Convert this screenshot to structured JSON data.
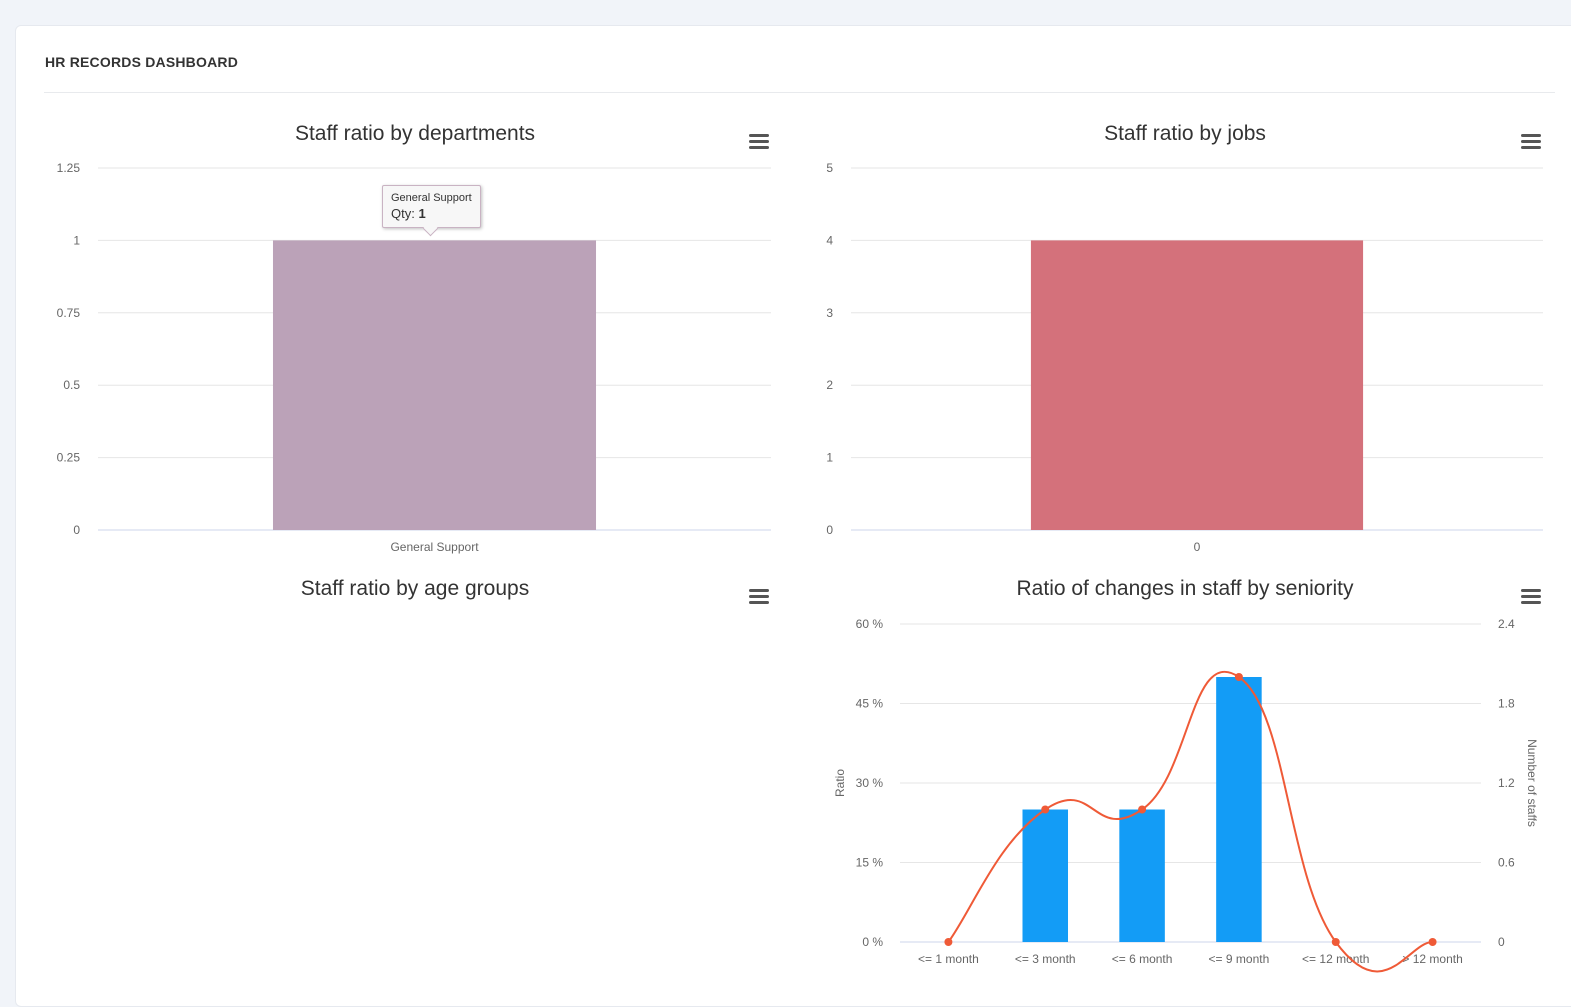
{
  "dashboard": {
    "title": "HR RECORDS DASHBOARD"
  },
  "charts": {
    "departments": {
      "title": "Staff ratio by departments",
      "yticks": [
        "0",
        "0.25",
        "0.5",
        "0.75",
        "1",
        "1.25"
      ],
      "categories": [
        "General Support"
      ],
      "values": [
        1
      ],
      "color": "#bba2b8",
      "tooltip": {
        "name": "General Support",
        "label": "Qty: ",
        "value": "1"
      }
    },
    "jobs": {
      "title": "Staff ratio by jobs",
      "yticks": [
        "0",
        "1",
        "2",
        "3",
        "4",
        "5"
      ],
      "categories": [
        "0"
      ],
      "values": [
        4
      ],
      "color": "#d4717b"
    },
    "age": {
      "title": "Staff ratio by age groups"
    },
    "seniority": {
      "title": "Ratio of changes in staff by seniority",
      "left_ticks": [
        "0 %",
        "15 %",
        "30 %",
        "45 %",
        "60 %"
      ],
      "right_ticks": [
        "0",
        "0.6",
        "1.2",
        "1.8",
        "2.4"
      ],
      "left_axis_label": "Ratio",
      "right_axis_label": "Number of staffs",
      "categories": [
        "<= 1 month",
        "<= 3 month",
        "<= 6 month",
        "<= 9 month",
        "<= 12 month",
        "> 12 month"
      ],
      "bar_color": "#139cf6",
      "line_color": "#ef5a37",
      "left_tick_color": "#8b5fc6",
      "left_label_color": "#d0c43a",
      "right_tick_color": "#2fcc3c",
      "right_label_color": "#2f95e0"
    }
  },
  "chart_data": [
    {
      "type": "bar",
      "title": "Staff ratio by departments",
      "categories": [
        "General Support"
      ],
      "values": [
        1
      ],
      "ylim": [
        0,
        1.25
      ]
    },
    {
      "type": "bar",
      "title": "Staff ratio by jobs",
      "categories": [
        "0"
      ],
      "values": [
        4
      ],
      "ylim": [
        0,
        5
      ]
    },
    {
      "type": "bar",
      "title": "Ratio of changes in staff by seniority",
      "categories": [
        "<= 1 month",
        "<= 3 month",
        "<= 6 month",
        "<= 9 month",
        "<= 12 month",
        "> 12 month"
      ],
      "series": [
        {
          "type": "bar",
          "axis": "left",
          "values": [
            0,
            25,
            25,
            50,
            0,
            0
          ],
          "ylim": [
            0,
            60
          ]
        },
        {
          "type": "line",
          "axis": "right",
          "values": [
            0,
            1,
            1,
            2,
            0,
            0
          ],
          "ylim": [
            0,
            2.4
          ]
        }
      ],
      "ylabel": "Ratio",
      "y2label": "Number of staffs"
    }
  ]
}
